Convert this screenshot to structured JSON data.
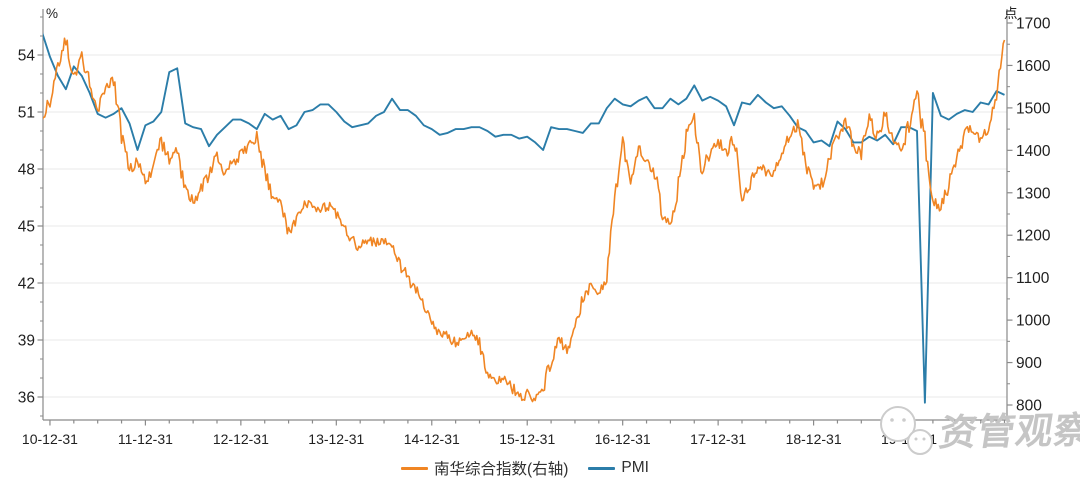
{
  "chart_data": {
    "type": "line",
    "title": "",
    "left_axis": {
      "label": "%",
      "ticks": [
        36,
        39,
        42,
        45,
        48,
        51,
        54
      ],
      "min": 34.8,
      "max": 56.4,
      "minor_step": 1
    },
    "right_axis": {
      "label": "点",
      "ticks": [
        800,
        900,
        1000,
        1100,
        1200,
        1300,
        1400,
        1500,
        1600,
        1700
      ],
      "min": 765,
      "max": 1730,
      "minor_step": 50
    },
    "x_axis": {
      "start_month": "2010-11",
      "months_per_major_tick": 12,
      "minor_tick_every_months": 3,
      "tick_labels": [
        "10-12-31",
        "11-12-31",
        "12-12-31",
        "13-12-31",
        "14-12-31",
        "15-12-31",
        "16-12-31",
        "17-12-31",
        "18-12-31",
        "19-12-31"
      ]
    },
    "grid": "horizontal-at-left-ticks",
    "legend_position": "bottom-center",
    "series": [
      {
        "name": "南华综合指数(右轴)",
        "axis": "right",
        "color": "#F08523",
        "style": "noisy-daily",
        "monthly_values": [
          1470,
          1520,
          1590,
          1670,
          1570,
          1620,
          1560,
          1500,
          1540,
          1570,
          1430,
          1350,
          1380,
          1330,
          1360,
          1420,
          1380,
          1400,
          1310,
          1280,
          1310,
          1340,
          1390,
          1350,
          1370,
          1390,
          1410,
          1430,
          1350,
          1290,
          1270,
          1210,
          1240,
          1280,
          1270,
          1260,
          1270,
          1250,
          1220,
          1190,
          1170,
          1190,
          1180,
          1190,
          1170,
          1130,
          1100,
          1070,
          1040,
          1000,
          970,
          965,
          945,
          965,
          975,
          945,
          880,
          855,
          865,
          845,
          815,
          825,
          810,
          840,
          905,
          955,
          930,
          985,
          1050,
          1080,
          1060,
          1100,
          1280,
          1415,
          1330,
          1410,
          1380,
          1350,
          1250,
          1215,
          1320,
          1440,
          1470,
          1345,
          1400,
          1420,
          1395,
          1430,
          1290,
          1320,
          1365,
          1350,
          1340,
          1400,
          1430,
          1460,
          1370,
          1310,
          1320,
          1380,
          1430,
          1470,
          1410,
          1390,
          1480,
          1430,
          1490,
          1420,
          1400,
          1460,
          1530,
          1420,
          1285,
          1265,
          1320,
          1380,
          1440,
          1455,
          1425,
          1450,
          1520,
          1660
        ]
      },
      {
        "name": "PMI",
        "axis": "left",
        "color": "#2B7DA9",
        "style": "smooth-monthly",
        "monthly_values": [
          55.2,
          53.9,
          52.9,
          52.2,
          53.4,
          52.9,
          52.0,
          50.9,
          50.7,
          50.9,
          51.2,
          50.4,
          49.0,
          50.3,
          50.5,
          51.0,
          53.1,
          53.3,
          50.4,
          50.2,
          50.1,
          49.2,
          49.8,
          50.2,
          50.6,
          50.6,
          50.4,
          50.1,
          50.9,
          50.6,
          50.8,
          50.1,
          50.3,
          51.0,
          51.1,
          51.4,
          51.4,
          51.0,
          50.5,
          50.2,
          50.3,
          50.4,
          50.8,
          51.0,
          51.7,
          51.1,
          51.1,
          50.8,
          50.3,
          50.1,
          49.8,
          49.9,
          50.1,
          50.1,
          50.2,
          50.2,
          50.0,
          49.7,
          49.8,
          49.8,
          49.6,
          49.7,
          49.4,
          49.0,
          50.2,
          50.1,
          50.1,
          50.0,
          49.9,
          50.4,
          50.4,
          51.2,
          51.7,
          51.4,
          51.3,
          51.6,
          51.8,
          51.2,
          51.2,
          51.7,
          51.4,
          51.7,
          52.4,
          51.6,
          51.8,
          51.6,
          51.3,
          50.3,
          51.5,
          51.4,
          51.9,
          51.5,
          51.2,
          51.3,
          50.8,
          50.2,
          50.0,
          49.4,
          49.5,
          49.2,
          50.5,
          50.1,
          49.4,
          49.4,
          49.7,
          49.5,
          49.8,
          49.3,
          50.2,
          50.2,
          50.0,
          35.7,
          52.0,
          50.8,
          50.6,
          50.9,
          51.1,
          51.0,
          51.5,
          51.4,
          52.1,
          51.9
        ]
      }
    ],
    "colors": {
      "axis_line": "#8a8a8a",
      "grid_line": "#eaeaea",
      "tick_label": "#1f1f1f"
    }
  },
  "legend": {
    "items": [
      {
        "label": "南华综合指数(右轴)"
      },
      {
        "label": "PMI"
      }
    ]
  },
  "watermark": {
    "text": "资管观察",
    "logo": "wechat-logo"
  }
}
